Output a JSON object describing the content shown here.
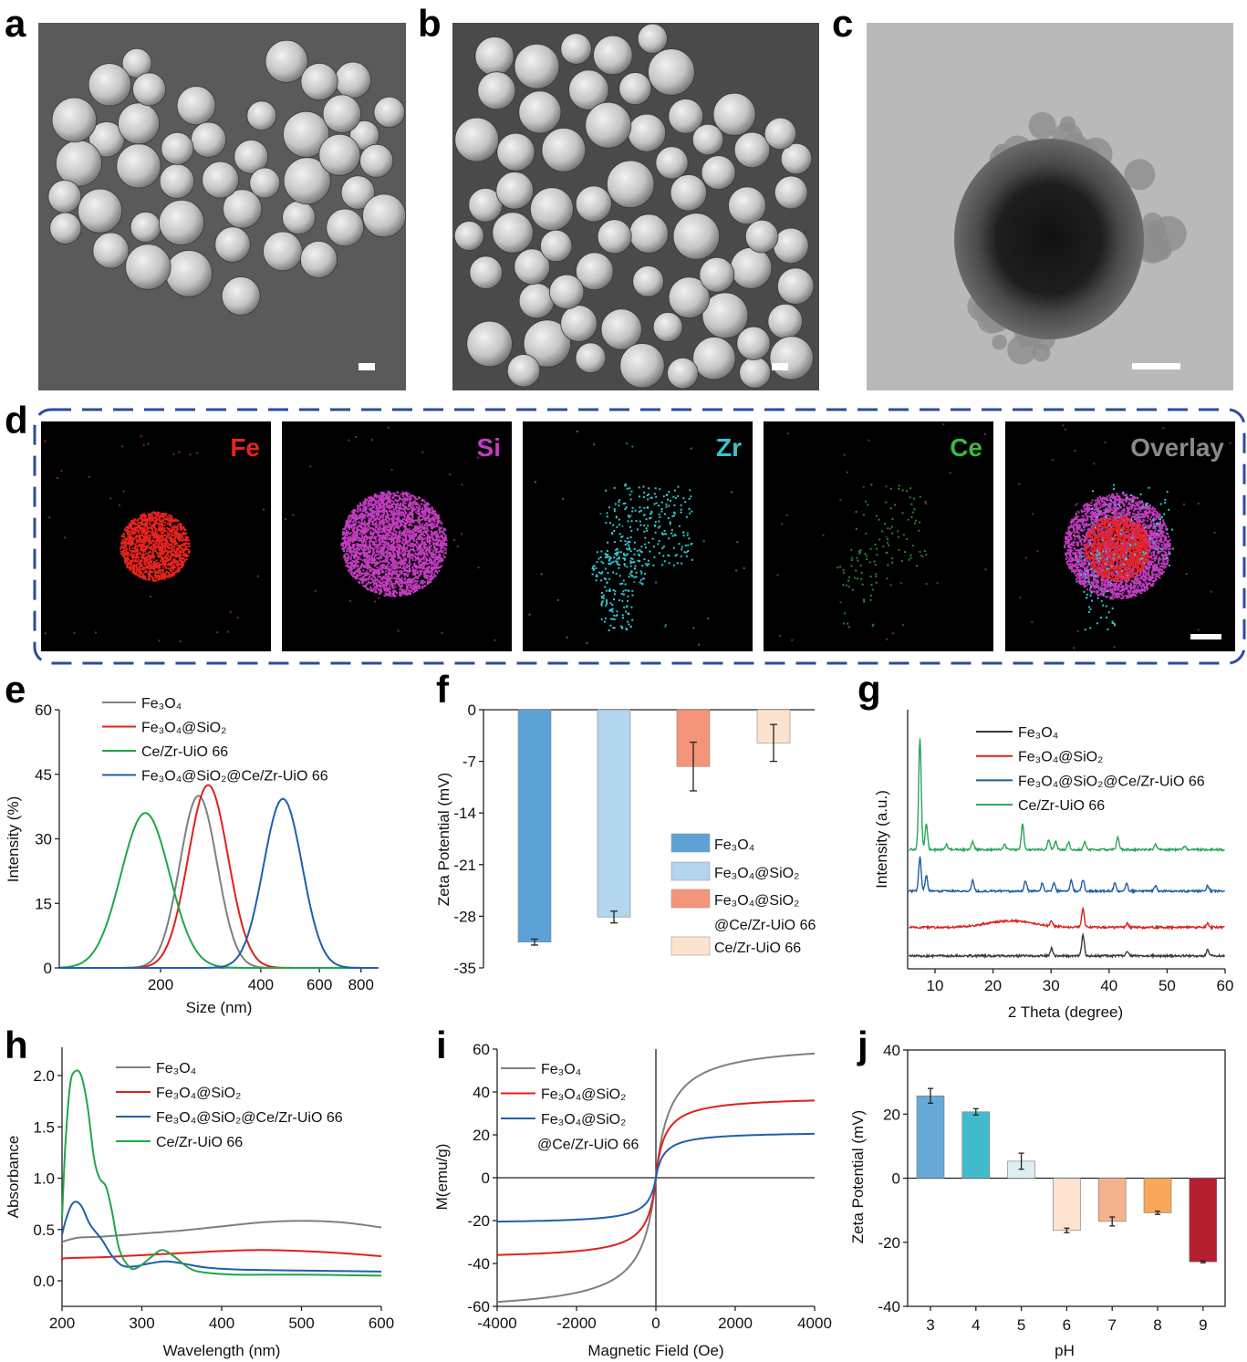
{
  "panel_labels": {
    "a": "a",
    "b": "b",
    "c": "c",
    "d": "d",
    "e": "e",
    "f": "f",
    "g": "g",
    "h": "h",
    "i": "i",
    "j": "j"
  },
  "eds_maps": [
    {
      "label": "Fe",
      "color": "#e8231f"
    },
    {
      "label": "Si",
      "color": "#c23cbf"
    },
    {
      "label": "Zr",
      "color": "#35c6cf"
    },
    {
      "label": "Ce",
      "color": "#3bb83f"
    },
    {
      "label": "Overlay",
      "color": "#8a8a8a"
    }
  ],
  "chart_data": [
    {
      "panel": "e",
      "type": "line",
      "xscale": "log",
      "xlabel": "Size (nm)",
      "ylabel": "Intensity (%)",
      "xticks": [
        200,
        400,
        600,
        800
      ],
      "yticks": [
        0,
        15,
        30,
        45,
        60
      ],
      "ylim": [
        0,
        60
      ],
      "xlim": [
        100,
        900
      ],
      "legend_position": "top-left",
      "series": [
        {
          "name": "Fe₃O₄",
          "color": "#7f7f7f",
          "peak_size_nm": 260,
          "peak_intensity": 40,
          "log_sigma": 0.056
        },
        {
          "name": "Fe₃O₄@SiO₂",
          "color": "#e0201b",
          "peak_size_nm": 278,
          "peak_intensity": 42.5,
          "log_sigma": 0.06
        },
        {
          "name": "Ce/Zr-UiO 66",
          "color": "#1fa64a",
          "peak_size_nm": 180,
          "peak_intensity": 36,
          "log_sigma": 0.073
        },
        {
          "name": "Fe₃O₄@SiO₂@Ce/Zr-UiO 66",
          "color": "#1f5fad",
          "peak_size_nm": 466,
          "peak_intensity": 39.3,
          "log_sigma": 0.058
        }
      ]
    },
    {
      "panel": "f",
      "type": "bar",
      "ylabel": "Zeta Potential (mV)",
      "yticks": [
        0,
        -7,
        -14,
        -21,
        -28,
        -35
      ],
      "ylim": [
        -35,
        0
      ],
      "legend_position": "bottom-right",
      "categories": [
        "Fe₃O₄",
        "Fe₃O₄@SiO₂",
        "Fe₃O₄@SiO₂ @Ce/Zr-UiO 66",
        "Ce/Zr-UiO 66"
      ],
      "legend_lines": [
        [
          "Fe₃O₄"
        ],
        [
          "Fe₃O₄@SiO₂"
        ],
        [
          "Fe₃O₄@SiO₂",
          "@Ce/Zr-UiO 66"
        ],
        [
          "Ce/Zr-UiO 66"
        ]
      ],
      "values": [
        -31.5,
        -28.1,
        -7.7,
        -4.5
      ],
      "errors": [
        0.4,
        0.8,
        3.3,
        2.5
      ],
      "colors": [
        "#5ba3d6",
        "#b3d5ee",
        "#f4957a",
        "#fbe3cf"
      ]
    },
    {
      "panel": "g",
      "type": "line",
      "xlabel": "2 Theta (degree)",
      "ylabel": "Intensity (a.u.)",
      "xticks": [
        10,
        20,
        30,
        40,
        50,
        60
      ],
      "xlim": [
        5,
        60
      ],
      "legend_position": "top-right",
      "series": [
        {
          "name": "Fe₃O₄",
          "color": "#3a3a3a",
          "offset": 0.5,
          "peaks": [
            [
              30.1,
              0.3
            ],
            [
              35.5,
              0.8
            ],
            [
              43.1,
              0.2
            ],
            [
              57.0,
              0.25
            ]
          ]
        },
        {
          "name": "Fe₃O₄@SiO₂",
          "color": "#d9201c",
          "offset": 1.6,
          "peaks": [
            [
              23,
              0.25,
              4
            ],
            [
              30.1,
              0.2
            ],
            [
              35.5,
              0.7
            ],
            [
              43.1,
              0.15
            ],
            [
              57.0,
              0.15
            ]
          ]
        },
        {
          "name": "Fe₃O₄@SiO₂@Ce/Zr-UiO 66",
          "color": "#1f5fa5",
          "offset": 3.0,
          "peaks": [
            [
              7.4,
              1.3
            ],
            [
              8.5,
              0.6
            ],
            [
              16.5,
              0.4
            ],
            [
              25.6,
              0.4
            ],
            [
              28.5,
              0.3
            ],
            [
              30.5,
              0.3
            ],
            [
              33.5,
              0.4
            ],
            [
              35.5,
              0.45
            ],
            [
              41,
              0.3
            ],
            [
              43,
              0.3
            ],
            [
              48,
              0.2
            ],
            [
              57,
              0.2
            ]
          ]
        },
        {
          "name": "Ce/Zr-UiO 66",
          "color": "#2aa55a",
          "offset": 4.6,
          "peaks": [
            [
              7.4,
              4.3
            ],
            [
              8.5,
              1.0
            ],
            [
              12,
              0.2
            ],
            [
              16.5,
              0.3
            ],
            [
              22,
              0.2
            ],
            [
              25.1,
              1.0
            ],
            [
              29.6,
              0.4
            ],
            [
              30.8,
              0.3
            ],
            [
              33,
              0.3
            ],
            [
              35.8,
              0.3
            ],
            [
              41.5,
              0.5
            ],
            [
              48,
              0.2
            ],
            [
              53,
              0.15
            ]
          ]
        }
      ]
    },
    {
      "panel": "h",
      "type": "line",
      "xlabel": "Wavelength (nm)",
      "ylabel": "Absorbance",
      "xticks": [
        200,
        300,
        400,
        500,
        600
      ],
      "yticks": [
        0.0,
        0.5,
        1.0,
        1.5,
        2.0
      ],
      "xlim": [
        200,
        600
      ],
      "ylim": [
        -0.25,
        2.28
      ],
      "legend_position": "top-right",
      "series": [
        {
          "name": "Fe₃O₄",
          "color": "#7f7f7f",
          "points": [
            [
              200,
              0.38
            ],
            [
              220,
              0.42
            ],
            [
              250,
              0.43
            ],
            [
              300,
              0.46
            ],
            [
              350,
              0.49
            ],
            [
              400,
              0.53
            ],
            [
              450,
              0.57
            ],
            [
              500,
              0.585
            ],
            [
              550,
              0.57
            ],
            [
              600,
              0.52
            ]
          ]
        },
        {
          "name": "Fe₃O₄@SiO₂",
          "color": "#e0201b",
          "points": [
            [
              200,
              0.2
            ],
            [
              205,
              0.22
            ],
            [
              250,
              0.23
            ],
            [
              300,
              0.25
            ],
            [
              350,
              0.27
            ],
            [
              400,
              0.29
            ],
            [
              450,
              0.3
            ],
            [
              500,
              0.29
            ],
            [
              550,
              0.27
            ],
            [
              600,
              0.24
            ]
          ]
        },
        {
          "name": "Fe₃O₄@SiO₂@Ce/Zr-UiO 66",
          "color": "#1f5fad",
          "points": [
            [
              200,
              0.45
            ],
            [
              205,
              0.6
            ],
            [
              212,
              0.74
            ],
            [
              218,
              0.77
            ],
            [
              225,
              0.72
            ],
            [
              235,
              0.55
            ],
            [
              250,
              0.4
            ],
            [
              262,
              0.25
            ],
            [
              275,
              0.15
            ],
            [
              290,
              0.14
            ],
            [
              310,
              0.17
            ],
            [
              330,
              0.19
            ],
            [
              350,
              0.17
            ],
            [
              380,
              0.13
            ],
            [
              420,
              0.11
            ],
            [
              500,
              0.1
            ],
            [
              600,
              0.09
            ]
          ]
        },
        {
          "name": "Ce/Zr-UiO 66",
          "color": "#1fa64a",
          "points": [
            [
              200,
              0.6
            ],
            [
              204,
              1.3
            ],
            [
              210,
              1.9
            ],
            [
              216,
              2.04
            ],
            [
              224,
              2.0
            ],
            [
              232,
              1.7
            ],
            [
              240,
              1.2
            ],
            [
              247,
              1.0
            ],
            [
              255,
              0.92
            ],
            [
              262,
              0.7
            ],
            [
              272,
              0.3
            ],
            [
              285,
              0.13
            ],
            [
              295,
              0.13
            ],
            [
              310,
              0.22
            ],
            [
              325,
              0.3
            ],
            [
              340,
              0.24
            ],
            [
              360,
              0.12
            ],
            [
              380,
              0.08
            ],
            [
              420,
              0.06
            ],
            [
              500,
              0.06
            ],
            [
              600,
              0.05
            ]
          ]
        }
      ]
    },
    {
      "panel": "i",
      "type": "line",
      "xlabel": "Magnetic Field (Oe)",
      "ylabel": "M(emu/g)",
      "xticks": [
        -4000,
        -2000,
        0,
        2000,
        4000
      ],
      "yticks": [
        -60,
        -40,
        -20,
        0,
        20,
        40,
        60
      ],
      "xlim": [
        -4000,
        4000
      ],
      "ylim": [
        -60,
        60
      ],
      "legend_position": "top-left",
      "series": [
        {
          "name": "Fe₃O₄",
          "legend_lines": [
            "Fe₃O₄"
          ],
          "color": "#7f7f7f",
          "saturation_magnetization": 63,
          "half_saturation_field_Oe": 350
        },
        {
          "name": "Fe₃O₄@SiO₂",
          "legend_lines": [
            "Fe₃O₄@SiO₂"
          ],
          "color": "#e0201b",
          "saturation_magnetization": 38,
          "half_saturation_field_Oe": 220
        },
        {
          "name": "Fe₃O₄@SiO₂@Ce/Zr-UiO 66",
          "legend_lines": [
            "Fe₃O₄@SiO₂",
            "@Ce/Zr-UiO 66"
          ],
          "color": "#1f5fad",
          "saturation_magnetization": 21.5,
          "half_saturation_field_Oe": 200
        }
      ]
    },
    {
      "panel": "j",
      "type": "bar",
      "xlabel": "pH",
      "ylabel": "Zeta Potential (mV)",
      "yticks": [
        -40,
        -20,
        0,
        20,
        40
      ],
      "ylim": [
        -40,
        40
      ],
      "categories": [
        "3",
        "4",
        "5",
        "6",
        "7",
        "8",
        "9"
      ],
      "values": [
        25.7,
        20.7,
        5.3,
        -16.3,
        -13.5,
        -10.8,
        -26.1
      ],
      "errors": [
        2.3,
        1.0,
        2.5,
        0.7,
        1.4,
        0.5,
        0.3
      ],
      "colors": [
        "#67a9d6",
        "#42bccd",
        "#ddeff2",
        "#fde3d0",
        "#f4b28e",
        "#f9a85b",
        "#b51f2e"
      ]
    }
  ]
}
